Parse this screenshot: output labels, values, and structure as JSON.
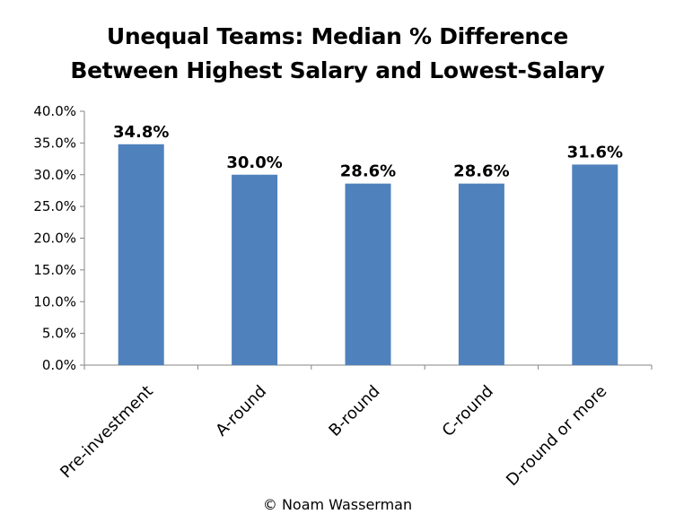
{
  "chart_data": {
    "type": "bar",
    "title_line1": "Unequal Teams: Median % Difference",
    "title_line2": "Between Highest Salary and Lowest-Salary",
    "categories": [
      "Pre-investment",
      "A-round",
      "B-round",
      "C-round",
      "D-round or more"
    ],
    "values": [
      34.8,
      30.0,
      28.6,
      28.6,
      31.6
    ],
    "data_labels": [
      "34.8%",
      "30.0%",
      "28.6%",
      "28.6%",
      "31.6%"
    ],
    "yticks": [
      "0.0%",
      "5.0%",
      "10.0%",
      "15.0%",
      "20.0%",
      "25.0%",
      "30.0%",
      "35.0%",
      "40.0%"
    ],
    "ylim": [
      0,
      40
    ],
    "grid": false,
    "legend": "none",
    "bar_color": "#4F81BD",
    "credit": "© Noam Wasserman"
  }
}
